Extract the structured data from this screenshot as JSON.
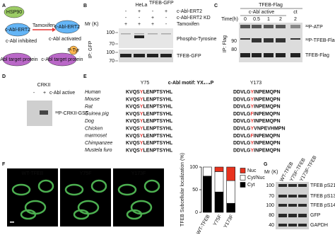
{
  "panel_a": {
    "label": "A",
    "hsp90": "HSP90",
    "ert2_left": "c-Abl-ERT2",
    "inhibited": "c-Abl inhibited",
    "tamoxifen": "Tamoxifen",
    "ert2_right": "c-Abl-ERT2",
    "activated": "c-Abl activated",
    "target_left": "c-Abl target protein",
    "target_right": "c-Abl target protein",
    "ptyr": "P-Tyr"
  },
  "panel_b": {
    "label": "B",
    "cell_line": "HeLa",
    "cell_line_sup": "TFEB-GFP",
    "mr": "Mr (K)",
    "rows": [
      {
        "name": "c-Abl-ERT2",
        "signs": [
          "-",
          "+",
          "-",
          "+"
        ]
      },
      {
        "name": "c-Abl-ERT2 KD",
        "signs": [
          "-",
          "-",
          "+",
          "-"
        ]
      },
      {
        "name": "Tamoxifen",
        "signs": [
          "+",
          "+",
          "+",
          "-"
        ]
      }
    ],
    "blots": [
      "Phospho-Tyrosine",
      "TFEB-GFP"
    ],
    "ip": "IP: GFP",
    "markers": [
      "100",
      "70",
      "100",
      "70"
    ]
  },
  "panel_c": {
    "label": "C",
    "header": "TFEB-Flag",
    "group": "c-Abl active",
    "ct": "ct",
    "time_label": "Time(h)",
    "times": [
      "0",
      "0.5",
      "1",
      "2",
      "2"
    ],
    "blots": [
      "³²P-ATP",
      "³²P-TFEB-Flag",
      "TFEB-Flag"
    ],
    "ip": "IP: Flag",
    "markers": [
      "90",
      "80"
    ]
  },
  "panel_d": {
    "label": "D",
    "header": "CRKII",
    "signs": [
      "-",
      "+"
    ],
    "row": "c-Abl active",
    "blot": "³²P-CRKII-GST"
  },
  "panel_e": {
    "label": "E",
    "y75": "Y75",
    "motif": "c-Abl motif: YX₁₋₃P",
    "y173": "Y173",
    "rows": [
      {
        "species": "Human",
        "s75": [
          "KVQS",
          "Y",
          "LENPTSYHL"
        ],
        "s173": [
          "DDVLG",
          "Y",
          "INPEMQPN"
        ]
      },
      {
        "species": "Mouse",
        "s75": [
          "KVQS",
          "Y",
          "LENPTSYHL"
        ],
        "s173": [
          "DDVLG",
          "Y",
          "INPEMQPN"
        ]
      },
      {
        "species": "Rat",
        "s75": [
          "KVQS",
          "Y",
          "LENPTSYHL"
        ],
        "s173": [
          "DDVLG",
          "Y",
          "INPEMQPN"
        ]
      },
      {
        "species": "Guinea pig",
        "s75": [
          "KVQS",
          "Y",
          "LENPTSYHL"
        ],
        "s173": [
          "DDVLG",
          "F",
          "INPEMQPN"
        ]
      },
      {
        "species": "Dog",
        "s75": [
          "KVQS",
          "Y",
          "LENPTSYHL"
        ],
        "s173": [
          "DDVLG",
          "Y",
          "INPEMQPN"
        ]
      },
      {
        "species": "Chicken",
        "s75": [
          "KVQS",
          "Y",
          "LENPTSYHL"
        ],
        "s173": [
          "DDVLG",
          "Y",
          "VNPEVHMPN"
        ]
      },
      {
        "species": "marmoset",
        "s75": [
          "KVQS",
          "Y",
          "LENPTSYHL"
        ],
        "s173": [
          "DDVLG",
          "F",
          "INPEMQPN"
        ]
      },
      {
        "species": "Chimpanzee",
        "s75": [
          "KVQS",
          "Y",
          "LENPTSYHL"
        ],
        "s173": [
          "DDVLG",
          "Y",
          "INPEMQPN"
        ]
      },
      {
        "species": "Mustela furo",
        "s75": [
          "KVQS",
          "Y",
          "LENPTSYHL"
        ],
        "s173": [
          "DDVLG",
          "Y",
          "INPEMQPN"
        ]
      }
    ]
  },
  "panel_f": {
    "label": "F",
    "images": [
      "WT-TFEB",
      "Y75F",
      "Y173F"
    ]
  },
  "chart_data": {
    "type": "stacked_bar",
    "ylabel": "TFEB Subcellular localization (%)",
    "categories": [
      "WT-TFEB",
      "Y75F",
      "Y173F"
    ],
    "series": [
      {
        "name": "Cyt",
        "color": "#000000",
        "values": [
          80,
          45,
          20
        ]
      },
      {
        "name": "Cyt/Nuc",
        "color": "#ffffff",
        "values": [
          20,
          45,
          50
        ]
      },
      {
        "name": "Nuc",
        "color": "#e8321e",
        "values": [
          0,
          10,
          30
        ]
      }
    ],
    "ylim": [
      0,
      100
    ],
    "yticks": [
      0,
      50,
      100
    ]
  },
  "panel_g": {
    "label": "G",
    "mr": "Mr (K)",
    "lanes": [
      "WT-TFEB",
      "Y75F-TFEB",
      "Y173F-TFEB"
    ],
    "blots": [
      "TFEB pS211",
      "TFEB pS138",
      "TFEB pS142",
      "GFP",
      "GAPDH"
    ],
    "markers": [
      "100",
      "70",
      "100",
      "80",
      "40"
    ]
  }
}
